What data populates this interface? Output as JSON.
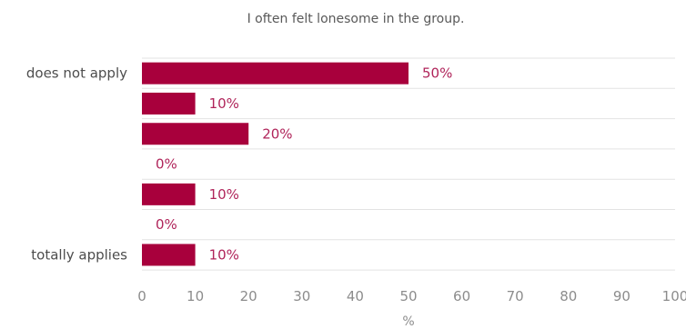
{
  "chart_data": {
    "type": "bar",
    "orientation": "horizontal",
    "title": "I often felt lonesome in the group.",
    "categories": [
      "does not apply",
      "",
      "",
      "",
      "",
      "",
      "totally applies"
    ],
    "values": [
      50,
      10,
      20,
      0,
      10,
      0,
      10
    ],
    "value_labels": [
      "50%",
      "10%",
      "20%",
      "0%",
      "10%",
      "0%",
      "10%"
    ],
    "xlabel": "%",
    "xlim": [
      0,
      100
    ],
    "xticks": [
      0,
      10,
      20,
      30,
      40,
      50,
      60,
      70,
      80,
      90,
      100
    ],
    "bar_color": "#a8003c",
    "label_color": "#b0245a",
    "grid": false,
    "legend": "none"
  }
}
